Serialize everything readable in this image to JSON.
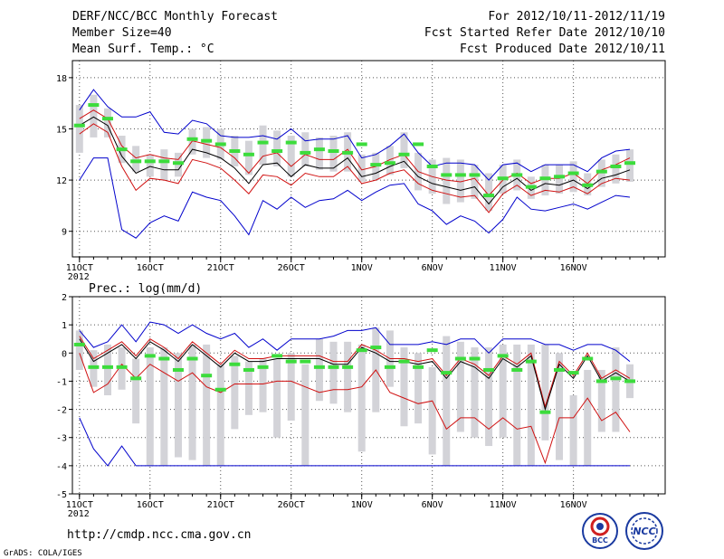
{
  "header": {
    "title": "DERF/NCC/BCC Monthly Forecast",
    "period": "For 2012/10/11-2012/11/19",
    "member_size": "Member Size=40",
    "start_date": "Fcst Started Refer Date 2012/10/10",
    "produced_date": "Fcst Produced Date 2012/10/11"
  },
  "footer": {
    "url": "http://cmdp.ncc.cma.gov.cn",
    "credit": "GrADS: COLA/IGES",
    "logo_left": "BCC",
    "logo_right": "NCC"
  },
  "colors": {
    "box": "#d3d3d8",
    "ensemble_mean": "#3cdc3c",
    "center": "#000000",
    "inner": "#d01010",
    "outer": "#0000cc"
  },
  "chart_data": [
    {
      "type": "box",
      "title": "Mean Surf. Temp.: °C",
      "x_days": [
        11,
        12,
        13,
        14,
        15,
        16,
        17,
        18,
        19,
        20,
        21,
        22,
        23,
        24,
        25,
        26,
        27,
        28,
        29,
        30,
        31,
        32,
        33,
        34,
        35,
        36,
        37,
        38,
        39,
        40,
        41,
        42,
        43,
        44,
        45,
        46,
        47,
        48,
        49,
        50
      ],
      "x_tick_labels": [
        "11OCT",
        "16OCT",
        "21OCT",
        "26OCT",
        "1NOV",
        "6NOV",
        "11NOV",
        "16NOV"
      ],
      "x_tick_days": [
        11,
        16,
        21,
        26,
        31,
        36,
        41,
        46
      ],
      "year_label": "2012",
      "ylim": [
        7.5,
        19.0
      ],
      "y_ticks": [
        9,
        12,
        15,
        18
      ],
      "series": {
        "box_min": [
          13.6,
          14.5,
          14.5,
          13.0,
          12.5,
          12.2,
          12.0,
          12.2,
          13.5,
          13.3,
          13.2,
          12.8,
          12.3,
          12.9,
          12.8,
          12.2,
          12.8,
          12.6,
          12.5,
          12.5,
          11.9,
          12.0,
          12.3,
          12.7,
          11.4,
          11.2,
          10.6,
          10.7,
          10.9,
          10.2,
          11.2,
          11.4,
          10.9,
          11.1,
          11.2,
          11.3,
          11.1,
          11.6,
          11.8,
          11.9
        ],
        "box_max": [
          16.4,
          17.0,
          16.2,
          14.6,
          14.0,
          13.5,
          13.8,
          13.6,
          15.0,
          15.1,
          15.0,
          14.6,
          14.3,
          15.2,
          14.9,
          14.6,
          14.8,
          14.5,
          14.6,
          14.8,
          13.5,
          13.6,
          14.0,
          14.8,
          13.6,
          13.2,
          13.3,
          13.2,
          12.9,
          12.4,
          12.9,
          13.2,
          12.2,
          12.9,
          12.9,
          13.1,
          12.4,
          13.2,
          13.5,
          13.8
        ],
        "ensemble_mean": [
          15.2,
          16.4,
          15.6,
          13.8,
          13.1,
          13.1,
          13.1,
          13.0,
          14.4,
          14.3,
          14.1,
          13.7,
          13.5,
          14.2,
          13.7,
          14.2,
          13.6,
          13.8,
          13.7,
          13.6,
          14.1,
          12.9,
          13.0,
          13.5,
          14.1,
          12.8,
          12.3,
          12.3,
          12.3,
          11.1,
          12.1,
          12.3,
          11.6,
          12.1,
          12.2,
          12.4,
          11.7,
          12.5,
          12.8,
          13.0
        ],
        "center": [
          15.2,
          15.7,
          15.2,
          13.4,
          12.4,
          12.8,
          12.6,
          12.6,
          13.8,
          13.6,
          13.3,
          12.7,
          11.8,
          12.9,
          13.0,
          12.2,
          12.9,
          12.7,
          12.7,
          13.3,
          12.2,
          12.4,
          12.8,
          13.1,
          12.2,
          11.8,
          11.6,
          11.4,
          11.6,
          10.6,
          11.6,
          12.1,
          11.4,
          11.8,
          11.7,
          12.0,
          11.5,
          12.1,
          12.3,
          12.6
        ],
        "upper_inner": [
          15.6,
          16.1,
          15.6,
          14.0,
          13.3,
          13.5,
          13.3,
          13.2,
          14.3,
          14.1,
          13.9,
          13.3,
          12.4,
          13.4,
          13.6,
          12.8,
          13.5,
          13.2,
          13.2,
          13.8,
          12.6,
          12.8,
          13.2,
          13.5,
          12.5,
          12.2,
          12.0,
          11.9,
          12.1,
          11.1,
          12.0,
          12.4,
          11.8,
          12.1,
          12.1,
          12.4,
          11.8,
          12.6,
          12.9,
          13.3
        ],
        "lower_inner": [
          14.7,
          15.3,
          14.8,
          12.8,
          11.4,
          12.1,
          12.0,
          11.8,
          13.2,
          13.0,
          12.7,
          12.0,
          11.2,
          12.3,
          12.2,
          11.7,
          12.4,
          12.2,
          12.2,
          12.8,
          11.8,
          12.0,
          12.4,
          12.6,
          11.8,
          11.4,
          11.2,
          11.0,
          11.1,
          10.1,
          11.2,
          11.7,
          11.1,
          11.4,
          11.3,
          11.6,
          11.2,
          11.8,
          12.1,
          12.0
        ],
        "upper_outer": [
          16.1,
          17.3,
          16.3,
          15.7,
          15.7,
          16.0,
          14.8,
          14.7,
          15.5,
          15.3,
          14.6,
          14.5,
          14.5,
          14.6,
          14.4,
          15.0,
          14.3,
          14.4,
          14.4,
          14.6,
          13.3,
          13.5,
          14.0,
          14.7,
          13.6,
          12.8,
          13.0,
          13.0,
          12.9,
          12.0,
          12.9,
          13.0,
          12.5,
          12.9,
          12.9,
          12.9,
          12.5,
          13.3,
          13.7,
          13.8
        ],
        "lower_outer": [
          12.0,
          13.3,
          13.3,
          9.1,
          8.6,
          9.5,
          9.9,
          9.6,
          11.3,
          11.0,
          10.8,
          9.9,
          8.8,
          10.8,
          10.3,
          11.0,
          10.4,
          10.8,
          10.9,
          11.4,
          10.8,
          11.3,
          11.7,
          11.8,
          10.6,
          10.2,
          9.4,
          9.9,
          9.6,
          8.9,
          9.7,
          11.0,
          10.3,
          10.2,
          10.4,
          10.6,
          10.3,
          10.7,
          11.1,
          11.0
        ]
      }
    },
    {
      "type": "box",
      "title": "Prec.: log(mm/d)",
      "x_days": [
        11,
        12,
        13,
        14,
        15,
        16,
        17,
        18,
        19,
        20,
        21,
        22,
        23,
        24,
        25,
        26,
        27,
        28,
        29,
        30,
        31,
        32,
        33,
        34,
        35,
        36,
        37,
        38,
        39,
        40,
        41,
        42,
        43,
        44,
        45,
        46,
        47,
        48,
        49,
        50
      ],
      "x_tick_labels": [
        "11OCT",
        "16OCT",
        "21OCT",
        "26OCT",
        "1NOV",
        "6NOV",
        "11NOV",
        "16NOV"
      ],
      "x_tick_days": [
        11,
        16,
        21,
        26,
        31,
        36,
        41,
        46
      ],
      "year_label": "2012",
      "ylim": [
        -5,
        2
      ],
      "y_ticks": [
        -5,
        -4,
        -3,
        -2,
        -1,
        0,
        1,
        2
      ],
      "series": {
        "box_min": [
          -0.6,
          -1.2,
          -1.5,
          -1.3,
          -2.5,
          -4.0,
          -4.0,
          -3.7,
          -3.8,
          -4.0,
          -4.0,
          -2.7,
          -2.2,
          -2.1,
          -3.0,
          -2.4,
          -4.0,
          -1.7,
          -1.8,
          -2.1,
          -3.5,
          -2.1,
          -1.2,
          -2.6,
          -2.5,
          -3.6,
          -4.0,
          -2.8,
          -3.0,
          -3.3,
          -3.0,
          -4.0,
          -4.0,
          -3.1,
          -3.8,
          -4.0,
          -4.0,
          -2.8,
          -2.8,
          -1.6
        ],
        "box_max": [
          0.8,
          0.1,
          0.3,
          0.2,
          -0.2,
          0.2,
          0.2,
          0.0,
          0.3,
          0.3,
          -0.4,
          -0.1,
          -0.3,
          -0.2,
          -0.2,
          0.0,
          -0.4,
          0.5,
          0.4,
          0.4,
          0.3,
          0.9,
          0.8,
          0.2,
          0.0,
          -0.5,
          0.6,
          0.4,
          0.2,
          0.2,
          0.3,
          0.3,
          0.3,
          0.3,
          0.0,
          -1.5,
          -0.6,
          -0.6,
          0.2,
          -0.4
        ],
        "ensemble_mean": [
          0.3,
          -0.5,
          -0.5,
          -0.5,
          -0.9,
          -0.1,
          -0.2,
          -0.6,
          -0.2,
          -0.8,
          -1.3,
          -0.4,
          -0.6,
          -0.5,
          -0.1,
          -0.3,
          -0.3,
          -0.5,
          -0.5,
          -0.5,
          0.1,
          0.2,
          -0.5,
          -0.3,
          -0.5,
          0.1,
          -0.7,
          -0.2,
          -0.2,
          -0.6,
          -0.1,
          -0.6,
          -0.3,
          -2.1,
          -0.6,
          -0.7,
          -0.2,
          -1.0,
          -0.9,
          -1.0
        ],
        "center": [
          0.5,
          -0.3,
          0.0,
          0.3,
          -0.2,
          0.4,
          0.1,
          -0.3,
          0.3,
          -0.1,
          -0.5,
          0.0,
          -0.3,
          -0.3,
          -0.2,
          -0.2,
          -0.2,
          -0.2,
          -0.4,
          -0.4,
          0.2,
          0.0,
          -0.3,
          -0.3,
          -0.4,
          -0.3,
          -0.9,
          -0.3,
          -0.5,
          -0.9,
          -0.2,
          -0.5,
          -0.1,
          -2.0,
          -0.4,
          -0.9,
          -0.1,
          -1.0,
          -0.7,
          -1.0
        ],
        "upper_inner": [
          0.6,
          -0.2,
          0.1,
          0.4,
          -0.1,
          0.5,
          0.2,
          -0.2,
          0.4,
          0.0,
          -0.4,
          0.1,
          -0.2,
          -0.2,
          -0.1,
          -0.1,
          -0.1,
          -0.1,
          -0.3,
          -0.3,
          0.3,
          0.1,
          -0.2,
          -0.2,
          -0.3,
          -0.2,
          -0.8,
          -0.2,
          -0.4,
          -0.8,
          -0.1,
          -0.4,
          0.0,
          -1.9,
          -0.3,
          -0.8,
          0.0,
          -0.9,
          -0.6,
          -0.9
        ],
        "lower_inner": [
          0.0,
          -1.4,
          -1.1,
          -0.4,
          -0.9,
          -0.4,
          -0.7,
          -1.0,
          -0.7,
          -1.2,
          -1.4,
          -1.1,
          -1.1,
          -1.1,
          -1.0,
          -1.0,
          -1.2,
          -1.4,
          -1.3,
          -1.3,
          -1.2,
          -0.6,
          -1.4,
          -1.6,
          -1.8,
          -1.7,
          -2.7,
          -2.3,
          -2.3,
          -2.7,
          -2.3,
          -2.7,
          -2.6,
          -3.9,
          -2.3,
          -2.3,
          -1.6,
          -2.4,
          -2.1,
          -2.8
        ],
        "upper_outer": [
          0.8,
          0.2,
          0.4,
          1.0,
          0.4,
          1.1,
          1.0,
          0.7,
          1.0,
          0.7,
          0.5,
          0.7,
          0.2,
          0.5,
          0.1,
          0.5,
          0.5,
          0.5,
          0.6,
          0.8,
          0.8,
          0.9,
          0.3,
          0.3,
          0.3,
          0.4,
          0.3,
          0.5,
          0.5,
          0.0,
          0.5,
          0.5,
          0.5,
          0.3,
          0.3,
          0.1,
          0.3,
          0.3,
          0.1,
          -0.3
        ],
        "lower_outer": [
          -2.3,
          -3.4,
          -4.0,
          -3.3,
          -4.0,
          -4.0,
          -4.0,
          -4.0,
          -4.0,
          -4.0,
          -4.0,
          -4.0,
          -4.0,
          -4.0,
          -4.0,
          -4.0,
          -4.0,
          -4.0,
          -4.0,
          -4.0,
          -4.0,
          -4.0,
          -4.0,
          -4.0,
          -4.0,
          -4.0,
          -4.0,
          -4.0,
          -4.0,
          -4.0,
          -4.0,
          -4.0,
          -4.0,
          -4.0,
          -4.0,
          -4.0,
          -4.0,
          -4.0,
          -4.0,
          -4.0
        ]
      }
    }
  ]
}
